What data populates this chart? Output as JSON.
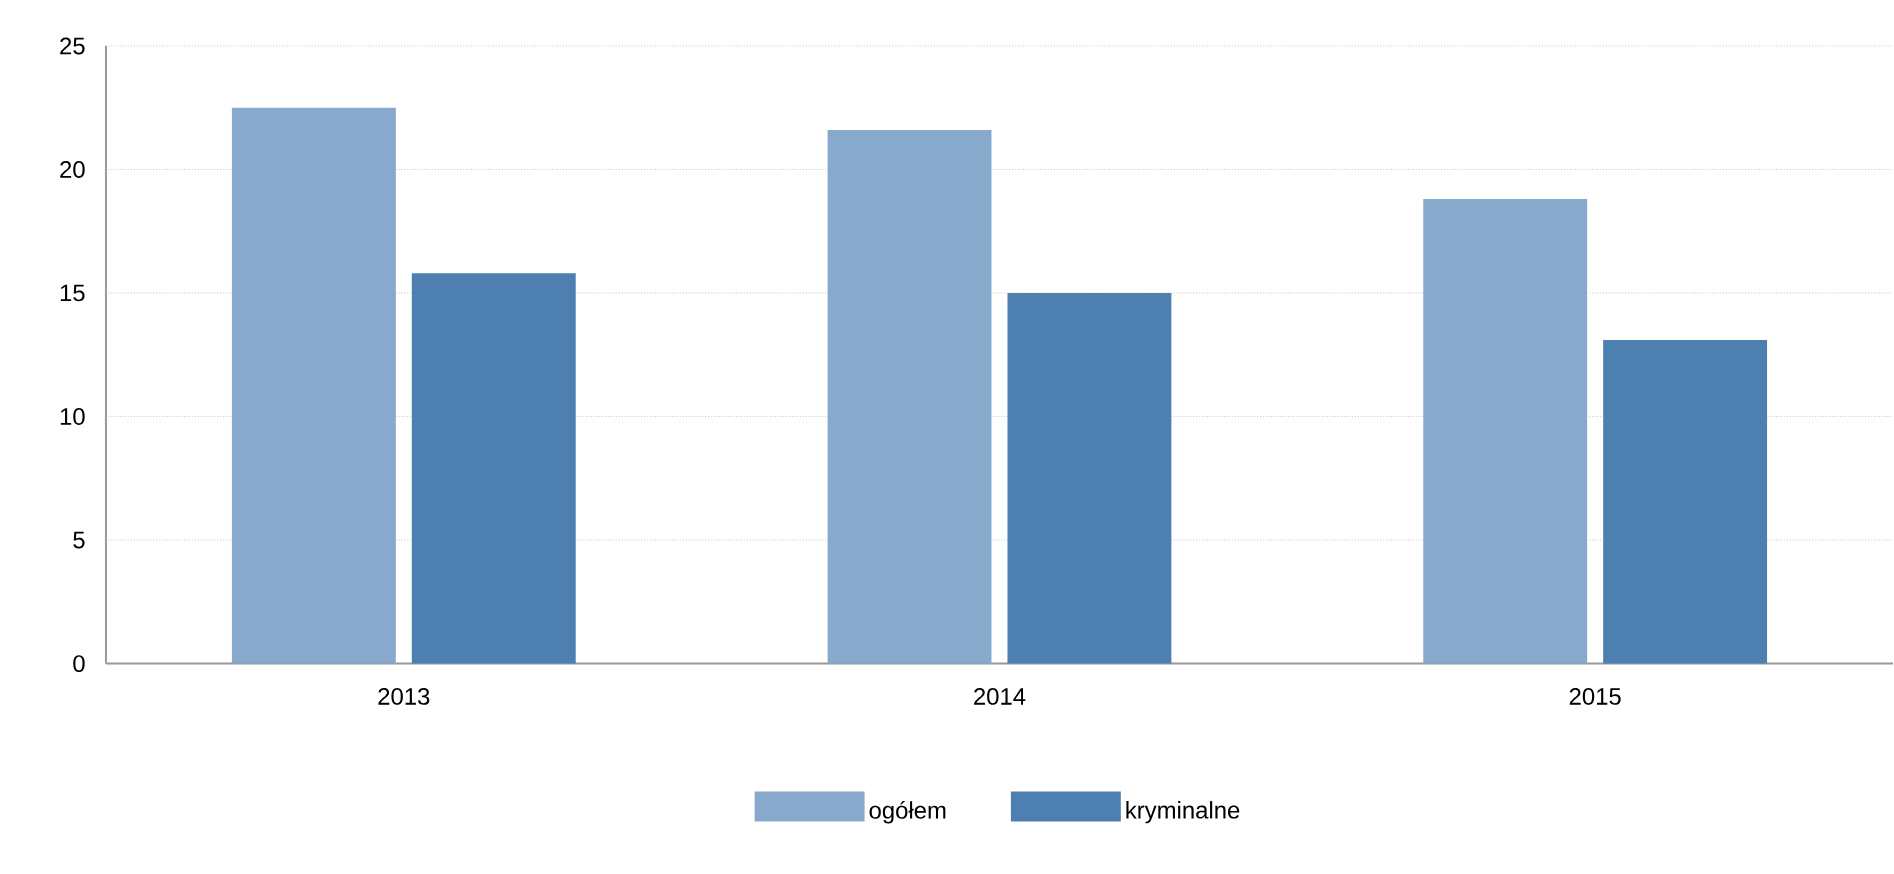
{
  "chart_data": {
    "type": "bar",
    "categories": [
      "2013",
      "2014",
      "2015"
    ],
    "series": [
      {
        "name": "ogółem",
        "color": "#87a9cb",
        "values": [
          22.5,
          21.6,
          18.8
        ]
      },
      {
        "name": "kryminalne",
        "color": "#4d80b0",
        "values": [
          15.8,
          15.0,
          13.1
        ]
      }
    ],
    "ylim": [
      0,
      25
    ],
    "yticks": [
      0,
      5,
      10,
      15,
      20,
      25
    ],
    "grid": "y",
    "legend": "bottom"
  }
}
